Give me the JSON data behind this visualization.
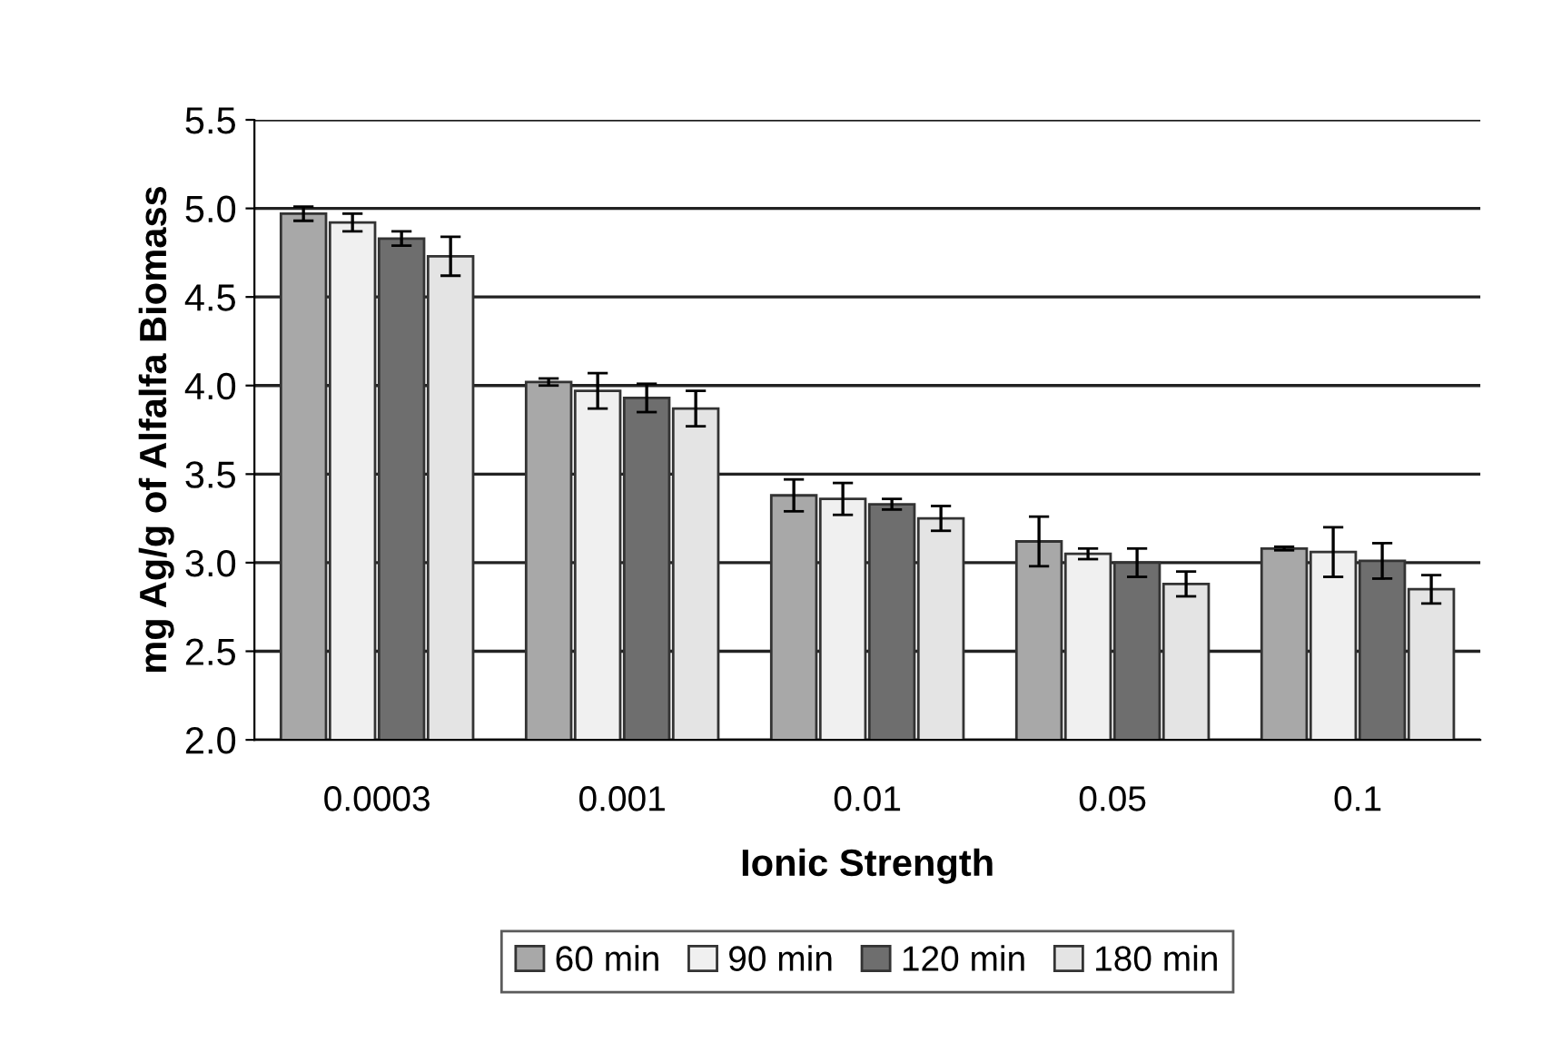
{
  "chart_data": {
    "type": "bar",
    "xlabel": "Ionic Strength",
    "ylabel": "mg Ag/g of Alfalfa Biomass",
    "categories": [
      "0.0003",
      "0.001",
      "0.01",
      "0.05",
      "0.1"
    ],
    "series": [
      {
        "name": "60 min",
        "color": "#a8a8a8",
        "values": [
          4.97,
          4.02,
          3.38,
          3.12,
          3.08
        ],
        "errors": [
          0.04,
          0.02,
          0.09,
          0.14,
          0.01
        ]
      },
      {
        "name": "90 min",
        "color": "#f0f0f0",
        "values": [
          4.92,
          3.97,
          3.36,
          3.05,
          3.06
        ],
        "errors": [
          0.05,
          0.1,
          0.09,
          0.03,
          0.14
        ]
      },
      {
        "name": "120 min",
        "color": "#6e6e6e",
        "values": [
          4.83,
          3.93,
          3.33,
          3.0,
          3.01
        ],
        "errors": [
          0.04,
          0.08,
          0.03,
          0.08,
          0.1
        ]
      },
      {
        "name": "180 min",
        "color": "#e4e4e4",
        "values": [
          4.73,
          3.87,
          3.25,
          2.88,
          2.85
        ],
        "errors": [
          0.11,
          0.1,
          0.07,
          0.07,
          0.08
        ]
      }
    ],
    "ylim": [
      2.0,
      5.5
    ],
    "yticks": [
      {
        "value": 2.0,
        "label": "2.0"
      },
      {
        "value": 2.5,
        "label": "2.5"
      },
      {
        "value": 3.0,
        "label": "3.0"
      },
      {
        "value": 3.5,
        "label": "3.5"
      },
      {
        "value": 4.0,
        "label": "4.0"
      },
      {
        "value": 4.5,
        "label": "4.5"
      },
      {
        "value": 5.0,
        "label": "5.0"
      },
      {
        "value": 5.5,
        "label": "5.5"
      }
    ],
    "grid": "y",
    "legend": "bottom"
  }
}
